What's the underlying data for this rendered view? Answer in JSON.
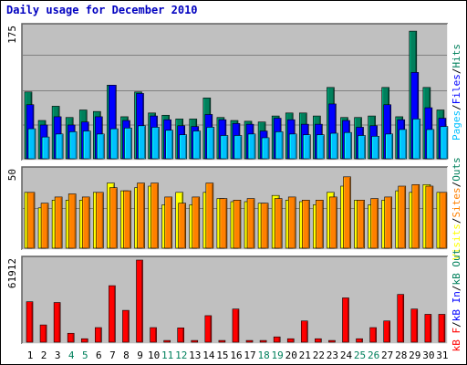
{
  "title": "Daily usage for December 2010",
  "colors": {
    "background": "#c0c0c0",
    "hits": "#00805c",
    "files": "#0000ff",
    "pages": "#00c0ff",
    "visits": "#ffff00",
    "sites": "#ff8000",
    "kbytes": "#ff0000",
    "weekday_label": "#000000",
    "weekend_label": "#00805c"
  },
  "chart_data": [
    {
      "type": "bar",
      "categories": [
        "1",
        "2",
        "3",
        "4",
        "5",
        "6",
        "7",
        "8",
        "9",
        "10",
        "11",
        "12",
        "13",
        "14",
        "15",
        "16",
        "17",
        "18",
        "19",
        "20",
        "21",
        "22",
        "23",
        "24",
        "25",
        "26",
        "27",
        "28",
        "29",
        "30",
        "31"
      ],
      "max_label": "175",
      "ylim": [
        0,
        175
      ],
      "legend": [
        "Pages",
        "Files",
        "Hits"
      ],
      "series": [
        {
          "name": "Hits",
          "values": [
            89,
            51,
            70,
            55,
            65,
            63,
            98,
            56,
            89,
            61,
            58,
            53,
            53,
            81,
            55,
            51,
            50,
            49,
            57,
            61,
            61,
            57,
            95,
            55,
            55,
            57,
            95,
            56,
            170,
            95,
            65
          ]
        },
        {
          "name": "Files",
          "values": [
            72,
            45,
            56,
            45,
            49,
            56,
            98,
            51,
            87,
            57,
            52,
            44,
            43,
            59,
            52,
            47,
            46,
            37,
            54,
            52,
            46,
            46,
            73,
            51,
            42,
            44,
            72,
            52,
            115,
            68,
            54
          ]
        },
        {
          "name": "Pages",
          "values": [
            40,
            29,
            33,
            36,
            37,
            33,
            40,
            41,
            44,
            42,
            38,
            32,
            37,
            42,
            31,
            31,
            33,
            28,
            36,
            33,
            32,
            32,
            34,
            35,
            31,
            30,
            33,
            39,
            53,
            39,
            43
          ]
        }
      ]
    },
    {
      "type": "bar",
      "categories": [
        "1",
        "2",
        "3",
        "4",
        "5",
        "6",
        "7",
        "8",
        "9",
        "10",
        "11",
        "12",
        "13",
        "14",
        "15",
        "16",
        "17",
        "18",
        "19",
        "20",
        "21",
        "22",
        "23",
        "24",
        "25",
        "26",
        "27",
        "28",
        "29",
        "30",
        "31"
      ],
      "max_label": "50",
      "ylim": [
        0,
        50
      ],
      "legend": [
        "Visits",
        "Sites",
        "Outs"
      ],
      "series": [
        {
          "name": "Visits",
          "values": [
            36,
            26,
            31,
            31,
            31,
            36,
            42,
            37,
            39,
            40,
            28,
            36,
            28,
            36,
            32,
            30,
            30,
            29,
            34,
            31,
            30,
            28,
            36,
            40,
            31,
            28,
            31,
            37,
            36,
            41,
            36
          ]
        },
        {
          "name": "Sites",
          "values": [
            36,
            29,
            33,
            35,
            33,
            36,
            39,
            37,
            42,
            42,
            33,
            29,
            33,
            42,
            32,
            31,
            32,
            29,
            32,
            33,
            31,
            31,
            33,
            46,
            31,
            32,
            33,
            40,
            41,
            40,
            36
          ]
        }
      ]
    },
    {
      "type": "bar",
      "categories": [
        "1",
        "2",
        "3",
        "4",
        "5",
        "6",
        "7",
        "8",
        "9",
        "10",
        "11",
        "12",
        "13",
        "14",
        "15",
        "16",
        "17",
        "18",
        "19",
        "20",
        "21",
        "22",
        "23",
        "24",
        "25",
        "26",
        "27",
        "28",
        "29",
        "30",
        "31"
      ],
      "max_label": "61912",
      "ylim": [
        0,
        61912
      ],
      "legend": [
        "kB F",
        "kB In",
        "kB Out"
      ],
      "series": [
        {
          "name": "kB F",
          "values": [
            30500,
            13000,
            29900,
            6700,
            2600,
            11000,
            42600,
            24000,
            61912,
            11000,
            1300,
            10800,
            1300,
            20000,
            1300,
            25000,
            1300,
            1300,
            4000,
            2600,
            16000,
            2600,
            1300,
            33400,
            2600,
            11000,
            16000,
            36000,
            25000,
            21000,
            21000
          ]
        }
      ]
    }
  ],
  "weekend_days": [
    4,
    5,
    11,
    12,
    18,
    19,
    25,
    26
  ]
}
